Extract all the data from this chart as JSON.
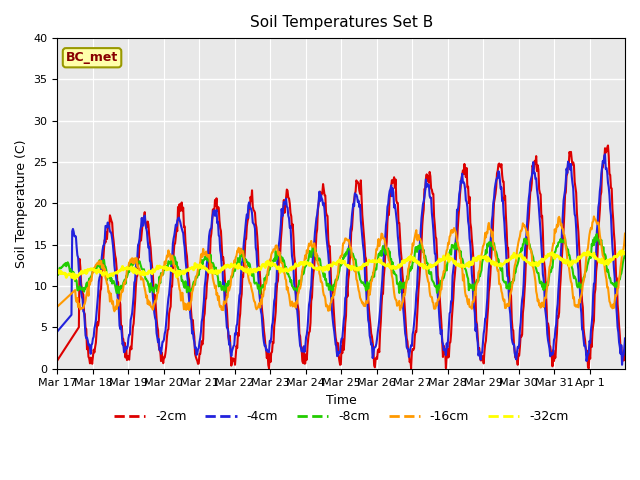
{
  "title": "Soil Temperatures Set B",
  "xlabel": "Time",
  "ylabel": "Soil Temperature (C)",
  "annotation": "BC_met",
  "ylim": [
    0,
    40
  ],
  "series_colors": {
    "-2cm": "#dd0000",
    "-4cm": "#2222dd",
    "-8cm": "#22cc00",
    "-16cm": "#ff9900",
    "-32cm": "#ffff00"
  },
  "series_linewidths": {
    "-2cm": 1.5,
    "-4cm": 1.5,
    "-8cm": 1.5,
    "-16cm": 1.5,
    "-32cm": 2.0
  },
  "background_color": "#e8e8e8",
  "x_tick_labels": [
    "Mar 17",
    "Mar 18",
    "Mar 19",
    "Mar 20",
    "Mar 21",
    "Mar 22",
    "Mar 23",
    "Mar 24",
    "Mar 25",
    "Mar 26",
    "Mar 27",
    "Mar 28",
    "Mar 29",
    "Mar 30",
    "Mar 31",
    "Apr 1"
  ],
  "yticks": [
    0,
    5,
    10,
    15,
    20,
    25,
    30,
    35,
    40
  ],
  "legend_labels": [
    "-2cm",
    "-4cm",
    "-8cm",
    "-16cm",
    "-32cm"
  ],
  "legend_colors": [
    "#dd0000",
    "#2222dd",
    "#22cc00",
    "#ff9900",
    "#ffff00"
  ]
}
